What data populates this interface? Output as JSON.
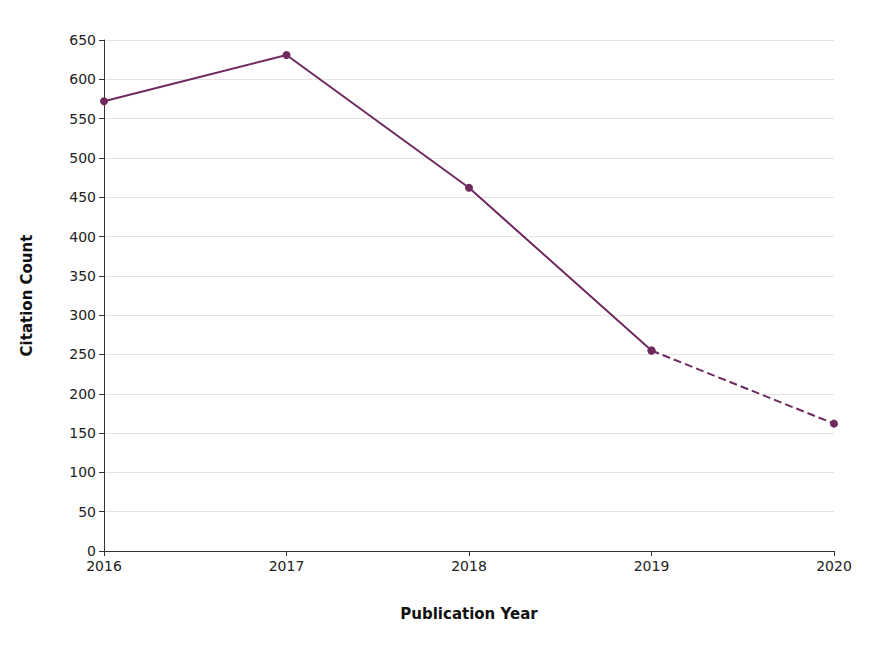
{
  "chart_data": {
    "type": "line",
    "x": [
      "2016",
      "2017",
      "2018",
      "2019",
      "2020"
    ],
    "x_label": "Publication Year",
    "y_label": "Citation Count",
    "series": [
      {
        "values": [
          572,
          631,
          462,
          255,
          null
        ],
        "color": "#6e2a5f",
        "line_style": "solid",
        "marker": "circle"
      },
      {
        "values": [
          null,
          null,
          null,
          255,
          162
        ],
        "color": "#6e2a5f",
        "line_style": "dashed",
        "marker": "circle"
      }
    ],
    "ylim": [
      0,
      650
    ],
    "yticks": [
      0,
      50,
      100,
      150,
      200,
      250,
      300,
      350,
      400,
      450,
      500,
      550,
      600,
      650
    ],
    "grid": true
  }
}
